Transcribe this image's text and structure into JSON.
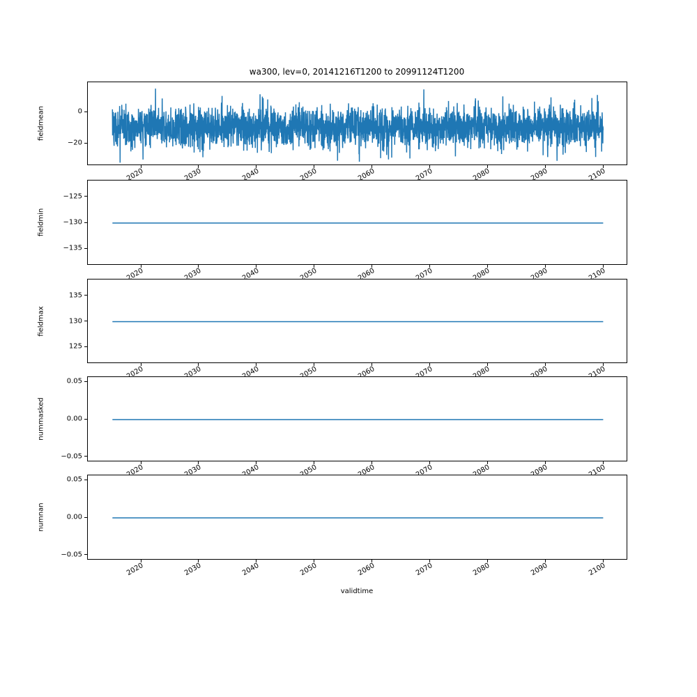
{
  "chart_data": {
    "type": "line",
    "title": "wa300, lev=0, 20141216T1200 to 20991124T1200",
    "xlabel": "validtime",
    "colors": {
      "line": "#1f77b4",
      "axes": "#000000",
      "background": "#ffffff"
    },
    "xlim": [
      2010.7,
      2104.2
    ],
    "x_data_range": [
      2014.96,
      2099.9
    ],
    "xticks": [
      {
        "v": 2020,
        "label": "2020"
      },
      {
        "v": 2030,
        "label": "2030"
      },
      {
        "v": 2040,
        "label": "2040"
      },
      {
        "v": 2050,
        "label": "2050"
      },
      {
        "v": 2060,
        "label": "2060"
      },
      {
        "v": 2070,
        "label": "2070"
      },
      {
        "v": 2080,
        "label": "2080"
      },
      {
        "v": 2090,
        "label": "2090"
      },
      {
        "v": 2100,
        "label": "2100"
      }
    ],
    "subplots": [
      {
        "name": "fieldmean",
        "ylabel": "fieldmean",
        "ylim": [
          -34,
          19
        ],
        "yticks": [
          {
            "v": 0,
            "label": "0"
          },
          {
            "v": -20,
            "label": "−20"
          }
        ],
        "series": {
          "kind": "noise",
          "mean": -9.5,
          "std": 6.5,
          "clip_min": -32,
          "clip_max": 15,
          "points": 3000,
          "seed": 20141216
        }
      },
      {
        "name": "fieldmin",
        "ylabel": "fieldmin",
        "ylim": [
          -138.2,
          -121.8
        ],
        "yticks": [
          {
            "v": -125,
            "label": "−125"
          },
          {
            "v": -130,
            "label": "−130"
          },
          {
            "v": -135,
            "label": "−135"
          }
        ],
        "series": {
          "kind": "flat",
          "value": -130
        }
      },
      {
        "name": "fieldmax",
        "ylabel": "fieldmax",
        "ylim": [
          121.8,
          138.2
        ],
        "yticks": [
          {
            "v": 135,
            "label": "135"
          },
          {
            "v": 130,
            "label": "130"
          },
          {
            "v": 125,
            "label": "125"
          }
        ],
        "series": {
          "kind": "flat",
          "value": 130
        }
      },
      {
        "name": "nummasked",
        "ylabel": "nummasked",
        "ylim": [
          -0.0565,
          0.0565
        ],
        "yticks": [
          {
            "v": 0.05,
            "label": "0.05"
          },
          {
            "v": 0,
            "label": "0.00"
          },
          {
            "v": -0.05,
            "label": "−0.05"
          }
        ],
        "series": {
          "kind": "flat",
          "value": 0
        }
      },
      {
        "name": "numnan",
        "ylabel": "numnan",
        "ylim": [
          -0.0565,
          0.0565
        ],
        "yticks": [
          {
            "v": 0.05,
            "label": "0.05"
          },
          {
            "v": 0,
            "label": "0.00"
          },
          {
            "v": -0.05,
            "label": "−0.05"
          }
        ],
        "series": {
          "kind": "flat",
          "value": 0
        }
      }
    ]
  }
}
